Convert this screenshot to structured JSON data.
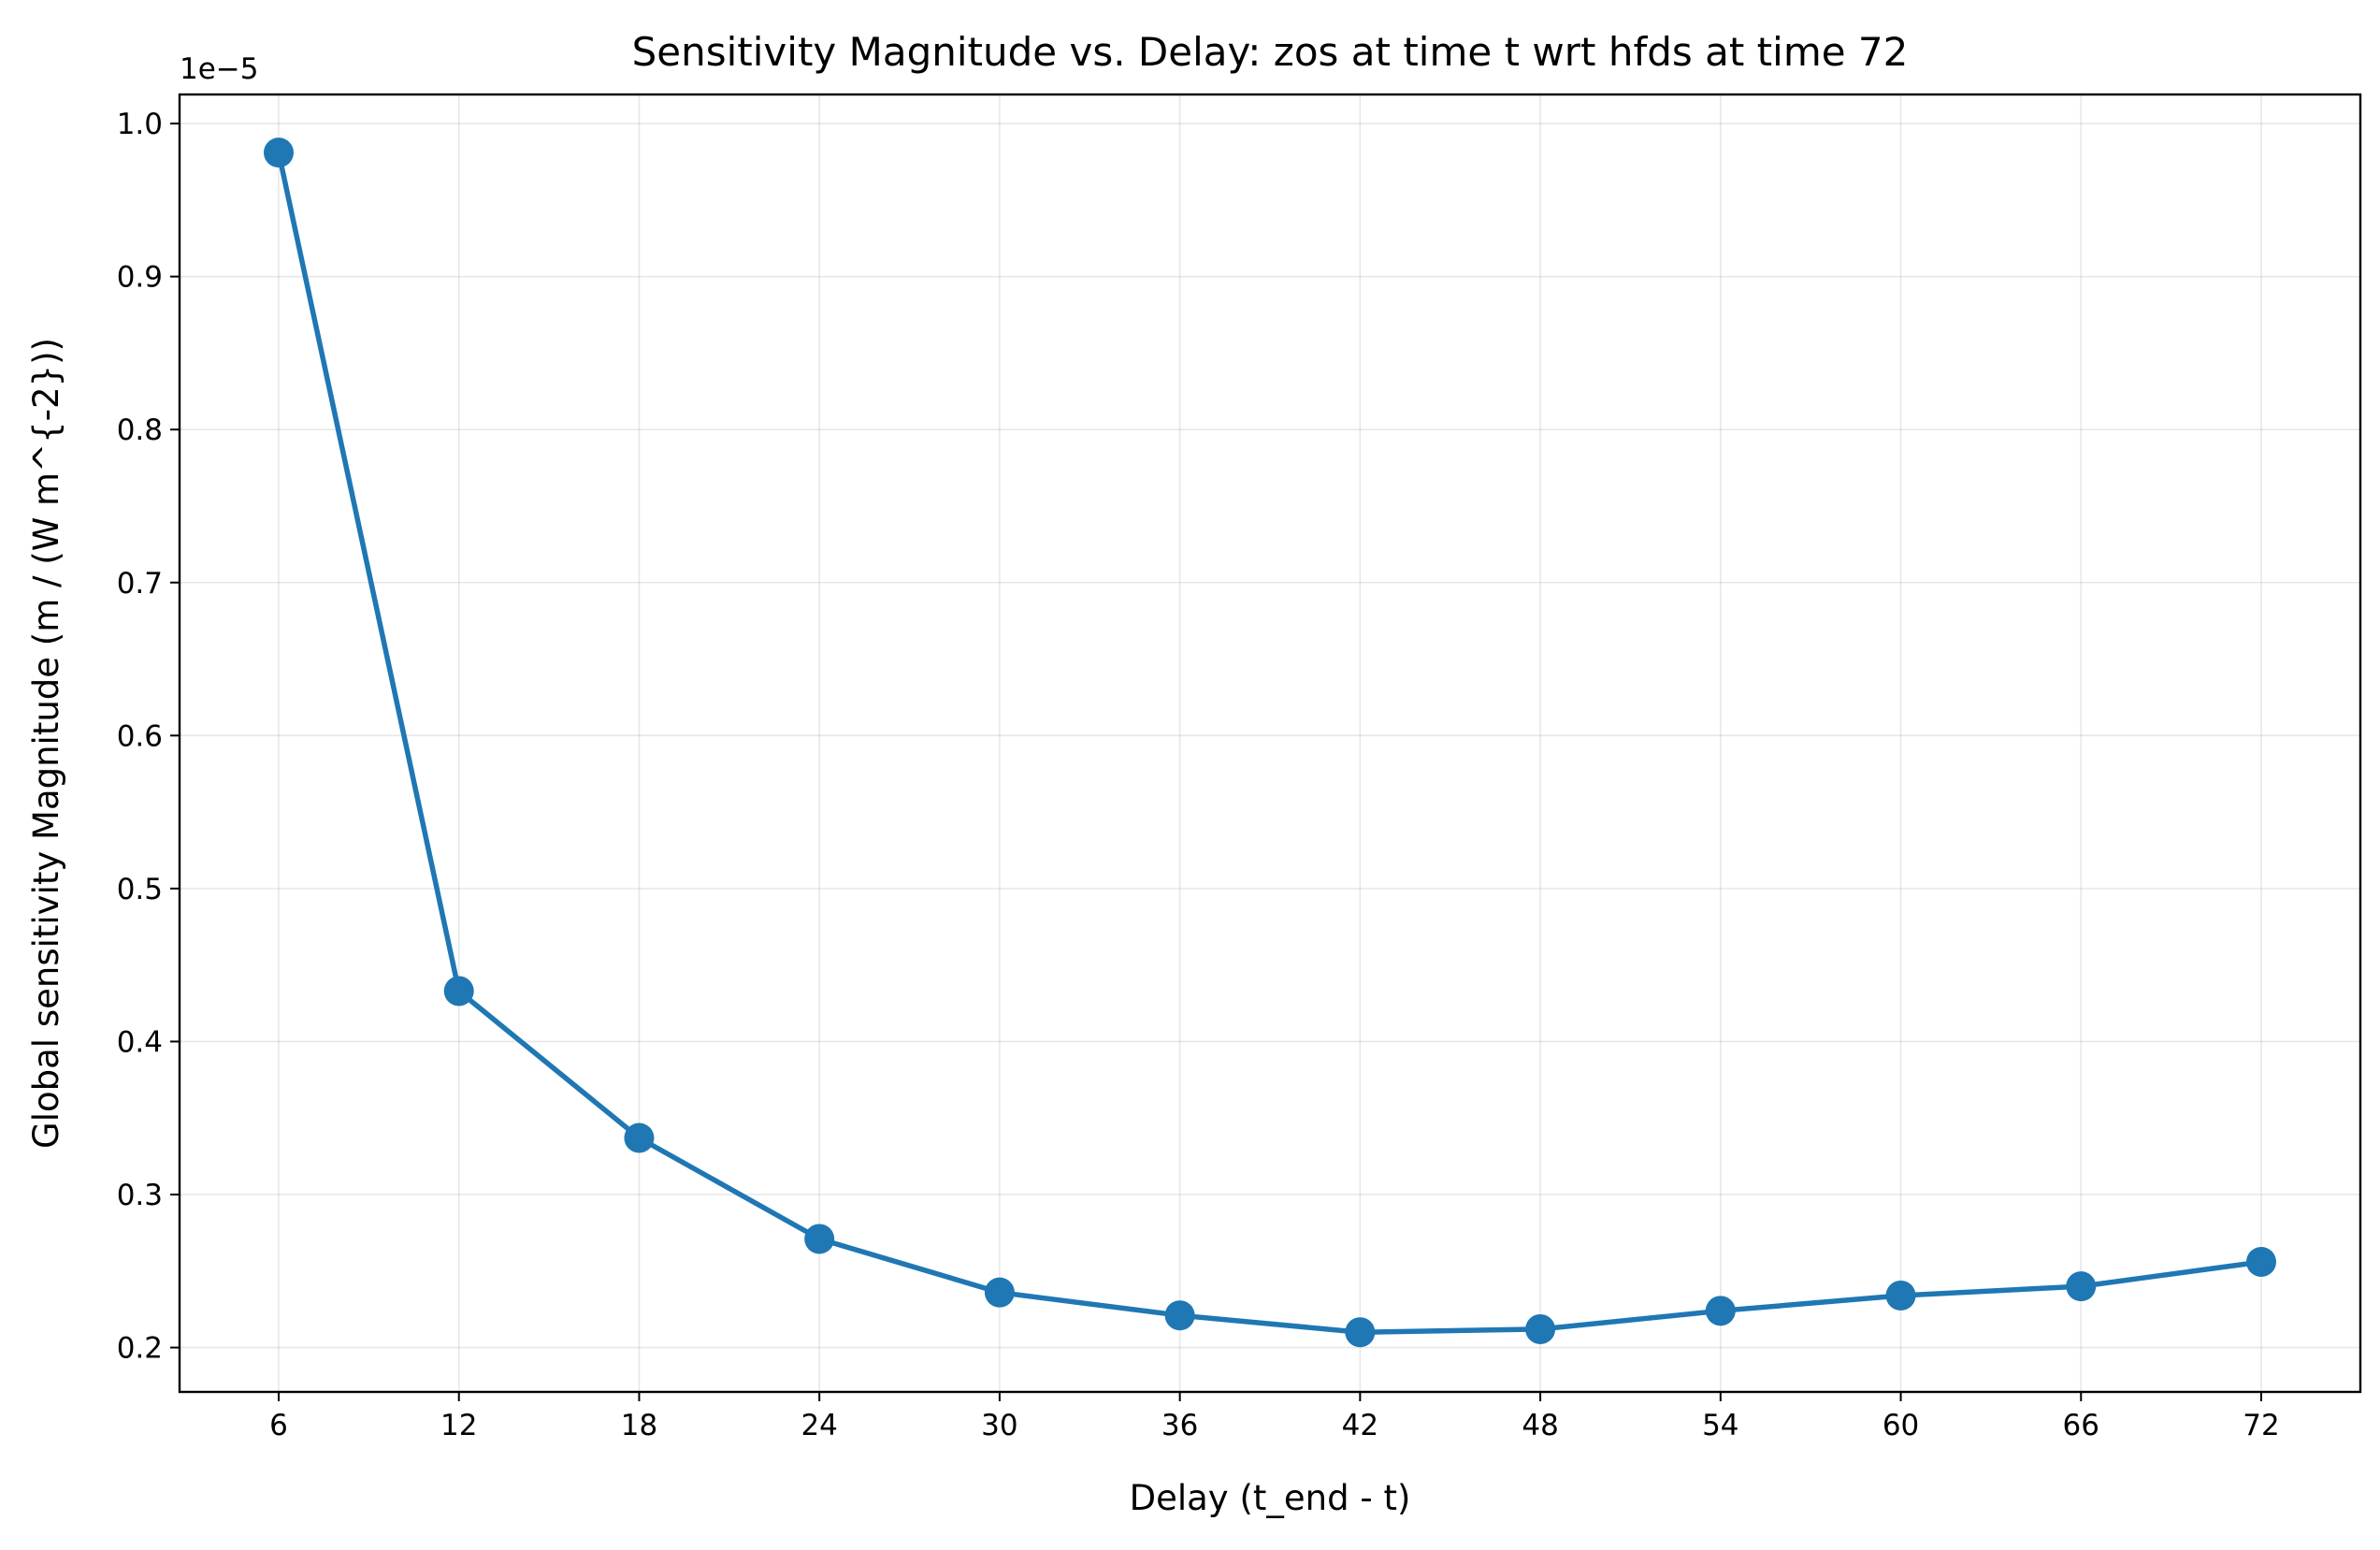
{
  "chart_data": {
    "type": "line",
    "title": "Sensitivity Magnitude vs. Delay: zos at time t wrt hfds at time 72",
    "xlabel": "Delay (t_end - t)",
    "ylabel": "Global sensitivity Magnitude (m / (W m^{-2}))",
    "y_offset_label": "1e−5",
    "x": [
      6,
      12,
      18,
      24,
      30,
      36,
      42,
      48,
      54,
      60,
      66,
      72
    ],
    "x_tick_labels": [
      "6",
      "12",
      "18",
      "24",
      "30",
      "36",
      "42",
      "48",
      "54",
      "60",
      "66",
      "72"
    ],
    "y_ticks": [
      0.2,
      0.3,
      0.4,
      0.5,
      0.6,
      0.7,
      0.8,
      0.9,
      1.0
    ],
    "y_tick_labels": [
      "0.2",
      "0.3",
      "0.4",
      "0.5",
      "0.6",
      "0.7",
      "0.8",
      "0.9",
      "1.0"
    ],
    "xlim": [
      2.7,
      75.3
    ],
    "ylim": [
      0.171,
      1.019
    ],
    "grid": true,
    "series": [
      {
        "color": "#1f77b4",
        "marker": "circle",
        "values": [
          0.981,
          0.433,
          0.337,
          0.271,
          0.236,
          0.221,
          0.21,
          0.212,
          0.224,
          0.234,
          0.24,
          0.256
        ]
      }
    ]
  }
}
